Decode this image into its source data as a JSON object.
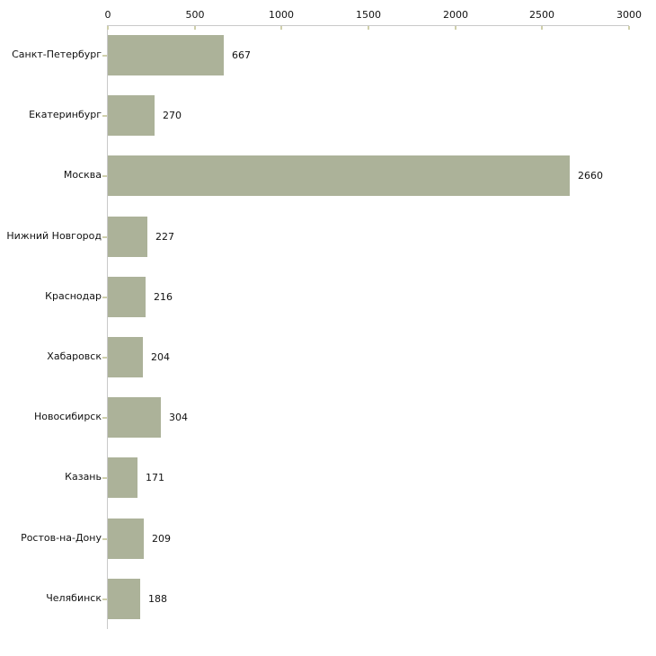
{
  "chart_data": {
    "type": "bar",
    "orientation": "horizontal",
    "title": "",
    "xlabel": "",
    "ylabel": "",
    "categories": [
      "Санкт-Петербург",
      "Екатеринбург",
      "Москва",
      "Нижний Новгород",
      "Краснодар",
      "Хабаровск",
      "Новосибирск",
      "Казань",
      "Ростов-на-Дону",
      "Челябинск"
    ],
    "values": [
      667,
      270,
      2660,
      227,
      216,
      204,
      304,
      171,
      209,
      188
    ],
    "value_labels": [
      "667",
      "270",
      "2660",
      "227",
      "216",
      "204",
      "304",
      "171",
      "209",
      "188"
    ],
    "x_ticks": [
      0,
      500,
      1000,
      1500,
      2000,
      2500,
      3000
    ],
    "xlim": [
      0,
      3000
    ],
    "grid": false,
    "legend": false,
    "axis_position": "top",
    "colors": {
      "bar": "#acb299",
      "axis_line": "#c9c9c9",
      "tick_mark": "#cfcfab",
      "text": "#111111",
      "background": "#ffffff"
    }
  }
}
